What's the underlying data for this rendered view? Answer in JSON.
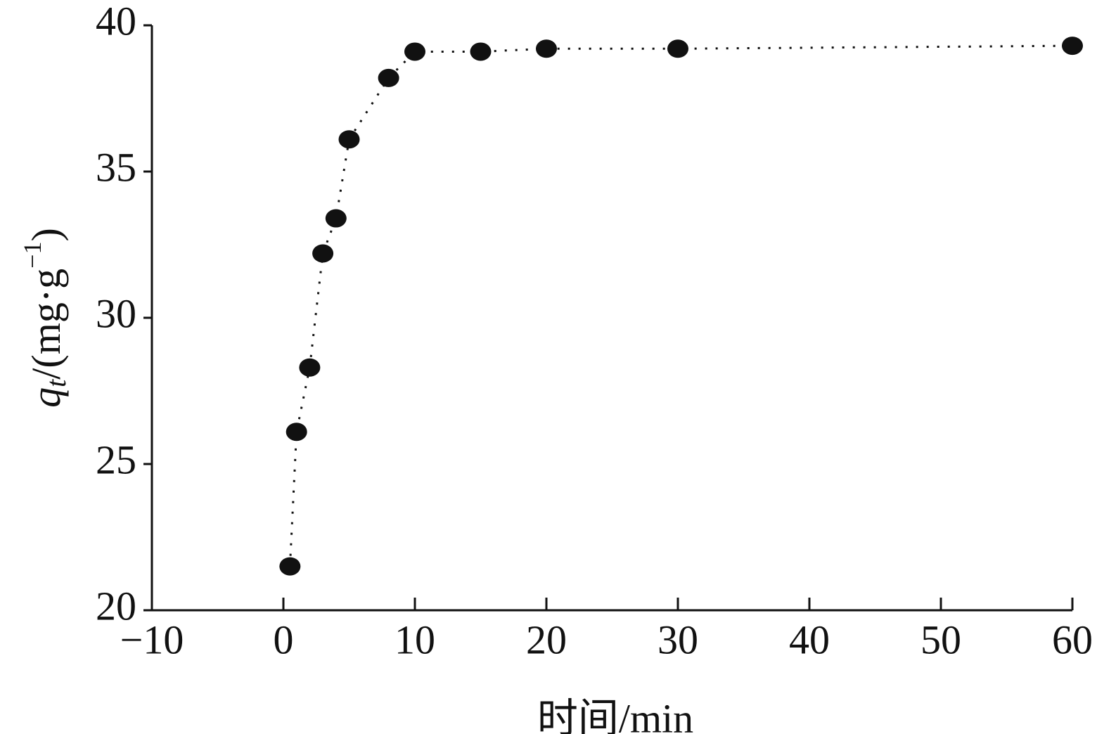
{
  "chart_data": {
    "type": "line",
    "x_label": "时间/min",
    "y_label": {
      "symbol": "q",
      "subscript": "t",
      "unit": "/(mg·g",
      "superscript": "−1",
      "close": ")"
    },
    "x": [
      0.5,
      1,
      2,
      3,
      4,
      5,
      8,
      10,
      15,
      20,
      30,
      60
    ],
    "series": [
      {
        "color": "#111111",
        "values": [
          21.5,
          26.1,
          28.3,
          32.2,
          33.4,
          36.1,
          38.2,
          39.1,
          39.1,
          39.2,
          39.2,
          39.3
        ]
      }
    ],
    "xlim": [
      -10,
      60
    ],
    "xticks": [
      {
        "value": -10,
        "label": "−10"
      },
      0,
      10,
      20,
      30,
      40,
      50,
      60
    ],
    "ylim": [
      20,
      40
    ],
    "yticks": [
      20,
      25,
      30,
      35,
      40
    ],
    "line_style": "dotted",
    "marker": "circle"
  }
}
